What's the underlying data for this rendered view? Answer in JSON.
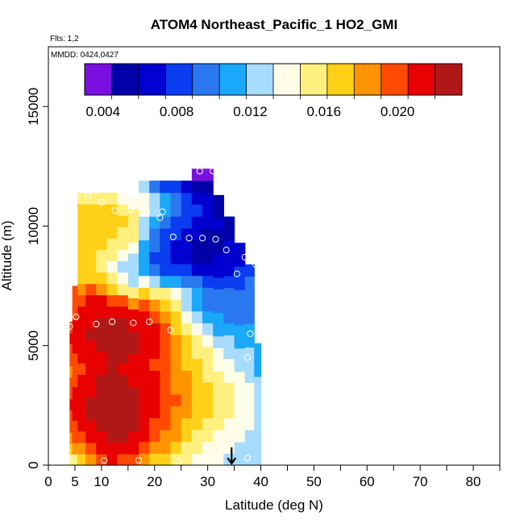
{
  "chart_data": {
    "type": "heatmap",
    "title": "ATOM4 Northeast_Pacific_1 HO2_GMI",
    "flights_note": "Flts: 1,2",
    "date_note": "MMDD: 0424,0427",
    "xlabel": "Latitude (deg N)",
    "ylabel": "Altitude (m)",
    "xlim": [
      0,
      85
    ],
    "ylim": [
      0,
      17500
    ],
    "x_ticks": [
      0,
      5,
      10,
      20,
      30,
      40,
      50,
      60,
      70,
      80
    ],
    "y_ticks": [
      0,
      5000,
      10000,
      15000
    ],
    "colorbar": {
      "range": [
        0.003,
        0.0235
      ],
      "tick_values": [
        0.004,
        0.008,
        0.012,
        0.016,
        0.02
      ],
      "tick_labels": [
        "0.004",
        "0.008",
        "0.012",
        "0.016",
        "0.020"
      ],
      "colors": [
        "#7a10e0",
        "#0000a8",
        "#0000d0",
        "#0a3cf0",
        "#2a78f0",
        "#1aa8f8",
        "#a8dcff",
        "#fdfde8",
        "#fff080",
        "#ffd018",
        "#ff9400",
        "#ff4a00",
        "#e80000",
        "#b01818"
      ]
    },
    "field_columns": [
      {
        "lat": 4,
        "alt_min": 0,
        "alt_max": 6000,
        "values": [
          0.0155,
          0.017,
          0.0185,
          0.0195,
          0.0205,
          0.021,
          0.0205,
          0.0195,
          0.019,
          0.0195,
          0.0205,
          0.021,
          0.0205
        ]
      },
      {
        "lat": 5,
        "alt_min": 0,
        "alt_max": 7500,
        "values": [
          0.016,
          0.018,
          0.0195,
          0.0205,
          0.021,
          0.0215,
          0.021,
          0.02,
          0.0195,
          0.02,
          0.021,
          0.0215,
          0.021,
          0.0205,
          0.02,
          0.0195
        ]
      },
      {
        "lat": 6,
        "alt_min": 0,
        "alt_max": 11400,
        "values": [
          0.0175,
          0.019,
          0.0205,
          0.0215,
          0.022,
          0.022,
          0.0215,
          0.021,
          0.0205,
          0.021,
          0.0215,
          0.022,
          0.0215,
          0.021,
          0.0205,
          0.019,
          0.0175,
          0.0165,
          0.0168,
          0.017,
          0.0172,
          0.0175,
          0.0168,
          0.016
        ]
      },
      {
        "lat": 8,
        "alt_min": 0,
        "alt_max": 11400,
        "values": [
          0.0185,
          0.02,
          0.0212,
          0.022,
          0.0225,
          0.0225,
          0.022,
          0.0215,
          0.021,
          0.0215,
          0.022,
          0.0225,
          0.022,
          0.0215,
          0.021,
          0.0195,
          0.0175,
          0.0165,
          0.017,
          0.0172,
          0.0175,
          0.0175,
          0.0168,
          0.0158
        ]
      },
      {
        "lat": 10,
        "alt_min": 0,
        "alt_max": 11400,
        "values": [
          0.02,
          0.0212,
          0.022,
          0.0228,
          0.023,
          0.023,
          0.0228,
          0.0222,
          0.0218,
          0.022,
          0.0225,
          0.0228,
          0.0225,
          0.022,
          0.021,
          0.0185,
          0.0162,
          0.015,
          0.0158,
          0.0165,
          0.017,
          0.0172,
          0.0165,
          0.015
        ]
      },
      {
        "lat": 12,
        "alt_min": 0,
        "alt_max": 11400,
        "values": [
          0.021,
          0.022,
          0.0228,
          0.0232,
          0.0232,
          0.023,
          0.0228,
          0.0225,
          0.0222,
          0.0225,
          0.0228,
          0.023,
          0.0228,
          0.022,
          0.0205,
          0.0172,
          0.015,
          0.014,
          0.0148,
          0.0158,
          0.0165,
          0.0168,
          0.0162,
          0.0148
        ]
      },
      {
        "lat": 14,
        "alt_min": 0,
        "alt_max": 11400,
        "values": [
          0.0205,
          0.0218,
          0.0225,
          0.023,
          0.023,
          0.0228,
          0.0225,
          0.0222,
          0.022,
          0.0222,
          0.0225,
          0.0228,
          0.0225,
          0.0215,
          0.0195,
          0.016,
          0.0138,
          0.013,
          0.0138,
          0.0148,
          0.0158,
          0.0162,
          0.0158,
          0.0145
        ]
      },
      {
        "lat": 16,
        "alt_min": 0,
        "alt_max": 11200,
        "values": [
          0.0195,
          0.021,
          0.022,
          0.0225,
          0.0228,
          0.0225,
          0.0222,
          0.022,
          0.0218,
          0.022,
          0.0222,
          0.0225,
          0.022,
          0.021,
          0.0185,
          0.015,
          0.0128,
          0.012,
          0.0128,
          0.0138,
          0.0148,
          0.0152,
          0.015,
          0.0142
        ]
      },
      {
        "lat": 18,
        "alt_min": 0,
        "alt_max": 11900,
        "values": [
          0.0185,
          0.02,
          0.021,
          0.0215,
          0.022,
          0.022,
          0.0218,
          0.0215,
          0.0212,
          0.0215,
          0.0218,
          0.022,
          0.0212,
          0.0198,
          0.0172,
          0.014,
          0.0115,
          0.0105,
          0.011,
          0.012,
          0.013,
          0.0138,
          0.0138,
          0.0128
        ]
      },
      {
        "lat": 20,
        "alt_min": 0,
        "alt_max": 11900,
        "values": [
          0.0175,
          0.019,
          0.0198,
          0.0205,
          0.021,
          0.0212,
          0.021,
          0.0208,
          0.0205,
          0.0208,
          0.021,
          0.021,
          0.02,
          0.0185,
          0.016,
          0.0125,
          0.0095,
          0.0085,
          0.009,
          0.01,
          0.0112,
          0.012,
          0.0118,
          0.0098
        ]
      },
      {
        "lat": 22,
        "alt_min": 0,
        "alt_max": 11900,
        "values": [
          0.0165,
          0.0178,
          0.0188,
          0.0195,
          0.02,
          0.0202,
          0.02,
          0.0198,
          0.0196,
          0.0198,
          0.02,
          0.0198,
          0.0185,
          0.0172,
          0.015,
          0.0115,
          0.0085,
          0.0075,
          0.008,
          0.0088,
          0.01,
          0.0108,
          0.0105,
          0.0088
        ]
      },
      {
        "lat": 24,
        "alt_min": 0,
        "alt_max": 11900,
        "values": [
          0.0155,
          0.0168,
          0.0178,
          0.0185,
          0.019,
          0.0192,
          0.019,
          0.0188,
          0.0185,
          0.0185,
          0.0182,
          0.0175,
          0.0162,
          0.015,
          0.0135,
          0.0108,
          0.0078,
          0.0065,
          0.0068,
          0.0075,
          0.0088,
          0.0095,
          0.0092,
          0.0075
        ]
      },
      {
        "lat": 26,
        "alt_min": 0,
        "alt_max": 11900,
        "values": [
          0.0148,
          0.0158,
          0.0168,
          0.0175,
          0.018,
          0.0182,
          0.018,
          0.0178,
          0.0175,
          0.0172,
          0.0165,
          0.0155,
          0.014,
          0.0128,
          0.0118,
          0.01,
          0.0075,
          0.006,
          0.0062,
          0.0068,
          0.0078,
          0.0085,
          0.0082,
          0.0065
        ]
      },
      {
        "lat": 28,
        "alt_min": 0,
        "alt_max": 12400,
        "values": [
          0.0142,
          0.015,
          0.0158,
          0.0165,
          0.017,
          0.0172,
          0.017,
          0.0168,
          0.0165,
          0.016,
          0.0152,
          0.014,
          0.0125,
          0.0112,
          0.0105,
          0.0092,
          0.0072,
          0.0058,
          0.0058,
          0.0062,
          0.007,
          0.0075,
          0.0072,
          0.0058,
          0.004
        ]
      },
      {
        "lat": 30,
        "alt_min": 0,
        "alt_max": 12400,
        "values": [
          0.0138,
          0.0145,
          0.0152,
          0.0158,
          0.0162,
          0.0165,
          0.0162,
          0.016,
          0.0155,
          0.0148,
          0.0138,
          0.0125,
          0.0112,
          0.0102,
          0.0098,
          0.0088,
          0.007,
          0.0058,
          0.0055,
          0.0058,
          0.0062,
          0.0065,
          0.0062,
          0.005,
          0.0036
        ]
      },
      {
        "lat": 32,
        "alt_min": 0,
        "alt_max": 11300,
        "values": [
          0.0135,
          0.014,
          0.0145,
          0.015,
          0.0155,
          0.0158,
          0.0155,
          0.015,
          0.0145,
          0.0138,
          0.0128,
          0.0115,
          0.0105,
          0.0098,
          0.0095,
          0.0085,
          0.007,
          0.006,
          0.0058,
          0.0058,
          0.006,
          0.0058,
          0.0052
        ]
      },
      {
        "lat": 34,
        "alt_min": 0,
        "alt_max": 10400,
        "values": [
          0.0132,
          0.0136,
          0.014,
          0.0144,
          0.0148,
          0.015,
          0.0148,
          0.0144,
          0.0138,
          0.013,
          0.012,
          0.011,
          0.01,
          0.0095,
          0.0092,
          0.0085,
          0.0072,
          0.0062,
          0.006,
          0.0058,
          0.0056
        ]
      },
      {
        "lat": 36,
        "alt_min": 0,
        "alt_max": 9300,
        "values": [
          0.013,
          0.0132,
          0.0135,
          0.0138,
          0.014,
          0.0142,
          0.014,
          0.0136,
          0.013,
          0.0122,
          0.0112,
          0.0105,
          0.0098,
          0.0094,
          0.0092,
          0.0088,
          0.0078,
          0.007,
          0.0065
        ]
      },
      {
        "lat": 38,
        "alt_min": 0,
        "alt_max": 8400,
        "values": [
          0.0128,
          0.013,
          0.0132,
          0.0134,
          0.0135,
          0.0136,
          0.0134,
          0.013,
          0.0125,
          0.0118,
          0.011,
          0.0104,
          0.0098,
          0.0095,
          0.0094,
          0.0092,
          0.0088
        ]
      },
      {
        "lat": 39.5,
        "alt_min": 0,
        "alt_max": 5100,
        "values": [
          0.0128,
          0.0128,
          0.013,
          0.013,
          0.013,
          0.0128,
          0.0125,
          0.012,
          0.0115,
          0.0112,
          0.011
        ]
      }
    ],
    "observations": [
      {
        "lat": 4.0,
        "alt": 250
      },
      {
        "lat": 10.5,
        "alt": 200
      },
      {
        "lat": 17.0,
        "alt": 200
      },
      {
        "lat": 24.5,
        "alt": 150
      },
      {
        "lat": 37.5,
        "alt": 300
      },
      {
        "lat": 4.0,
        "alt": 5800
      },
      {
        "lat": 5.2,
        "alt": 6200
      },
      {
        "lat": 9.0,
        "alt": 5900
      },
      {
        "lat": 12.0,
        "alt": 6000
      },
      {
        "lat": 16.0,
        "alt": 5950
      },
      {
        "lat": 19.0,
        "alt": 6000
      },
      {
        "lat": 23.0,
        "alt": 5650
      },
      {
        "lat": 37.5,
        "alt": 4500
      },
      {
        "lat": 38.0,
        "alt": 5500
      },
      {
        "lat": 35.5,
        "alt": 8000
      },
      {
        "lat": 37.0,
        "alt": 8700
      },
      {
        "lat": 39.0,
        "alt": 8400
      },
      {
        "lat": 33.5,
        "alt": 9000
      },
      {
        "lat": 23.5,
        "alt": 9550
      },
      {
        "lat": 26.5,
        "alt": 9500
      },
      {
        "lat": 29.0,
        "alt": 9500
      },
      {
        "lat": 31.5,
        "alt": 9450
      },
      {
        "lat": 21.0,
        "alt": 10350
      },
      {
        "lat": 21.5,
        "alt": 10600
      },
      {
        "lat": 18.5,
        "alt": 10600
      },
      {
        "lat": 15.5,
        "alt": 10700
      },
      {
        "lat": 12.5,
        "alt": 10650
      },
      {
        "lat": 10.0,
        "alt": 11000
      },
      {
        "lat": 7.5,
        "alt": 11300
      },
      {
        "lat": 14.5,
        "alt": 11250
      },
      {
        "lat": 28.5,
        "alt": 12300
      },
      {
        "lat": 31.0,
        "alt": 12300
      }
    ],
    "marker": {
      "lat": 34.5,
      "alt": 0,
      "symbol": "downward-arrow"
    },
    "grid": false,
    "legend": "colorbar top inside plot"
  }
}
